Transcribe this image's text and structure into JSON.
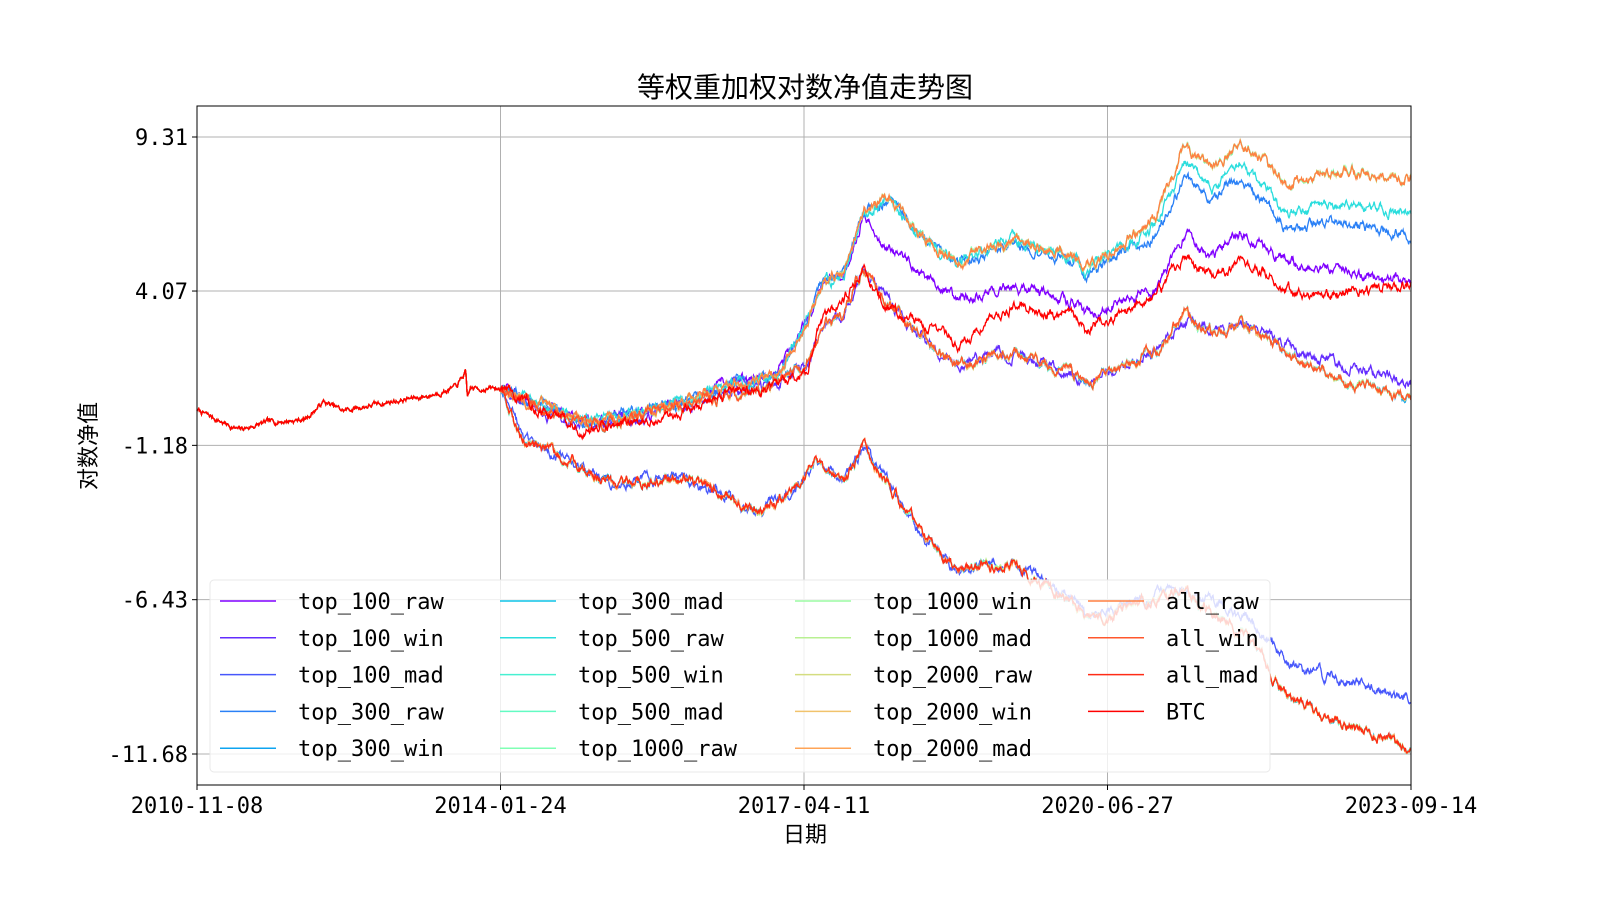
{
  "chart_data": {
    "type": "line",
    "title": "等权重加权对数净值走势图",
    "xlabel": "日期",
    "ylabel": "对数净值",
    "x_ticks": [
      {
        "label": "2010-11-08",
        "year": 2010.86
      },
      {
        "label": "2014-01-24",
        "year": 2014.07
      },
      {
        "label": "2017-04-11",
        "year": 2017.28
      },
      {
        "label": "2020-06-27",
        "year": 2020.49
      },
      {
        "label": "2023-09-14",
        "year": 2023.7
      }
    ],
    "y_ticks": [
      9.31,
      4.07,
      -1.18,
      -6.43,
      -11.68
    ],
    "y_tick_labels": [
      "9.31",
      "4.07",
      "-1.18",
      "-6.43",
      "-11.68"
    ],
    "xlim": [
      2010.86,
      2023.7
    ],
    "ylim": [
      -12.75,
      10.35
    ],
    "grid": true,
    "legend_placement": "lower-left",
    "legend_columns": 4,
    "shared_prefix": [
      [
        2010.86,
        0.02
      ],
      [
        2011.3,
        -0.66
      ],
      [
        2011.6,
        -0.4
      ],
      [
        2012.0,
        -0.3
      ],
      [
        2012.2,
        0.3
      ],
      [
        2012.4,
        0.0
      ],
      [
        2012.9,
        0.3
      ],
      [
        2013.3,
        0.5
      ],
      [
        2013.6,
        0.8
      ],
      [
        2013.7,
        1.3
      ],
      [
        2013.72,
        0.4
      ],
      [
        2013.75,
        0.75
      ],
      [
        2014.07,
        0.75
      ]
    ],
    "curves": {
      "raw_top": [
        [
          2014.07,
          0.75
        ],
        [
          2014.5,
          0.2
        ],
        [
          2015.0,
          -0.4
        ],
        [
          2015.5,
          -0.1
        ],
        [
          2016.0,
          0.3
        ],
        [
          2016.5,
          0.9
        ],
        [
          2017.0,
          1.2
        ],
        [
          2017.3,
          3.0
        ],
        [
          2017.5,
          4.4
        ],
        [
          2017.7,
          4.6
        ],
        [
          2017.9,
          6.8
        ],
        [
          2018.2,
          7.2
        ],
        [
          2018.5,
          6.0
        ],
        [
          2018.9,
          5.1
        ],
        [
          2019.5,
          5.8
        ],
        [
          2020.2,
          5.1
        ],
        [
          2020.25,
          4.8
        ],
        [
          2021.0,
          6.6
        ],
        [
          2021.3,
          9.0
        ],
        [
          2021.6,
          8.2
        ],
        [
          2021.9,
          9.3
        ],
        [
          2022.4,
          7.7
        ],
        [
          2022.6,
          7.9
        ],
        [
          2023.0,
          8.2
        ],
        [
          2023.7,
          7.85
        ]
      ],
      "raw_500": [
        [
          2014.07,
          0.75
        ],
        [
          2014.5,
          0.2
        ],
        [
          2015.0,
          -0.4
        ],
        [
          2015.5,
          -0.1
        ],
        [
          2016.0,
          0.3
        ],
        [
          2016.5,
          0.9
        ],
        [
          2017.0,
          1.2
        ],
        [
          2017.3,
          3.0
        ],
        [
          2017.5,
          4.4
        ],
        [
          2017.7,
          4.6
        ],
        [
          2017.9,
          6.8
        ],
        [
          2018.2,
          7.2
        ],
        [
          2018.5,
          6.0
        ],
        [
          2018.9,
          5.1
        ],
        [
          2019.5,
          5.8
        ],
        [
          2020.2,
          5.1
        ],
        [
          2020.25,
          4.8
        ],
        [
          2021.0,
          6.3
        ],
        [
          2021.3,
          8.3
        ],
        [
          2021.6,
          7.6
        ],
        [
          2021.9,
          8.4
        ],
        [
          2022.4,
          6.7
        ],
        [
          2022.6,
          6.9
        ],
        [
          2023.0,
          7.0
        ],
        [
          2023.7,
          6.7
        ]
      ],
      "raw_300": [
        [
          2014.07,
          0.75
        ],
        [
          2014.5,
          0.2
        ],
        [
          2015.0,
          -0.4
        ],
        [
          2015.5,
          -0.1
        ],
        [
          2016.0,
          0.3
        ],
        [
          2016.5,
          0.9
        ],
        [
          2017.0,
          1.2
        ],
        [
          2017.3,
          3.0
        ],
        [
          2017.5,
          4.4
        ],
        [
          2017.7,
          4.6
        ],
        [
          2017.9,
          6.8
        ],
        [
          2018.2,
          7.2
        ],
        [
          2018.5,
          6.0
        ],
        [
          2018.9,
          5.0
        ],
        [
          2019.5,
          5.7
        ],
        [
          2020.2,
          5.0
        ],
        [
          2020.25,
          4.6
        ],
        [
          2021.0,
          6.0
        ],
        [
          2021.3,
          7.8
        ],
        [
          2021.6,
          7.2
        ],
        [
          2021.9,
          7.9
        ],
        [
          2022.4,
          6.2
        ],
        [
          2022.6,
          6.3
        ],
        [
          2023.0,
          6.4
        ],
        [
          2023.7,
          6.0
        ]
      ],
      "raw_100": [
        [
          2014.07,
          0.75
        ],
        [
          2014.5,
          0.2
        ],
        [
          2015.0,
          -0.4
        ],
        [
          2015.5,
          -0.1
        ],
        [
          2016.0,
          0.3
        ],
        [
          2016.5,
          0.9
        ],
        [
          2017.0,
          1.2
        ],
        [
          2017.3,
          3.0
        ],
        [
          2017.5,
          4.4
        ],
        [
          2017.7,
          4.6
        ],
        [
          2017.9,
          6.5
        ],
        [
          2018.2,
          5.5
        ],
        [
          2018.9,
          3.8
        ],
        [
          2019.5,
          4.3
        ],
        [
          2020.2,
          3.6
        ],
        [
          2020.25,
          3.3
        ],
        [
          2021.0,
          4.1
        ],
        [
          2021.3,
          6.0
        ],
        [
          2021.6,
          5.3
        ],
        [
          2021.9,
          6.0
        ],
        [
          2022.6,
          4.8
        ],
        [
          2023.0,
          4.7
        ],
        [
          2023.7,
          4.4
        ]
      ],
      "btc": [
        [
          2014.07,
          0.75
        ],
        [
          2014.5,
          0.0
        ],
        [
          2015.0,
          -0.66
        ],
        [
          2015.5,
          -0.4
        ],
        [
          2016.0,
          0.0
        ],
        [
          2016.5,
          0.6
        ],
        [
          2017.0,
          0.75
        ],
        [
          2017.3,
          1.3
        ],
        [
          2017.5,
          3.3
        ],
        [
          2017.7,
          3.8
        ],
        [
          2017.9,
          4.8
        ],
        [
          2018.1,
          3.6
        ],
        [
          2018.5,
          3.0
        ],
        [
          2018.9,
          2.2
        ],
        [
          2019.5,
          3.6
        ],
        [
          2020.2,
          3.1
        ],
        [
          2020.25,
          2.7
        ],
        [
          2021.0,
          3.9
        ],
        [
          2021.3,
          5.1
        ],
        [
          2021.6,
          4.6
        ],
        [
          2021.9,
          5.1
        ],
        [
          2022.6,
          3.9
        ],
        [
          2023.0,
          4.0
        ],
        [
          2023.7,
          4.3
        ]
      ],
      "win": [
        [
          2014.07,
          0.75
        ],
        [
          2014.5,
          0.0
        ],
        [
          2015.0,
          -0.5
        ],
        [
          2015.5,
          -0.2
        ],
        [
          2016.0,
          0.2
        ],
        [
          2016.5,
          0.6
        ],
        [
          2017.0,
          1.0
        ],
        [
          2017.3,
          1.5
        ],
        [
          2017.5,
          3.0
        ],
        [
          2017.7,
          3.2
        ],
        [
          2017.9,
          4.7
        ],
        [
          2018.2,
          3.6
        ],
        [
          2018.5,
          2.6
        ],
        [
          2018.9,
          1.55
        ],
        [
          2019.5,
          2.0
        ],
        [
          2020.2,
          1.2
        ],
        [
          2020.25,
          0.9
        ],
        [
          2021.0,
          2.0
        ],
        [
          2021.3,
          3.2
        ],
        [
          2021.6,
          2.6
        ],
        [
          2021.9,
          3.0
        ],
        [
          2022.6,
          1.6
        ],
        [
          2023.0,
          1.0
        ],
        [
          2023.7,
          0.36
        ]
      ],
      "win_100": [
        [
          2014.07,
          0.75
        ],
        [
          2014.5,
          0.0
        ],
        [
          2015.0,
          -0.5
        ],
        [
          2015.5,
          -0.2
        ],
        [
          2016.0,
          0.2
        ],
        [
          2016.5,
          0.6
        ],
        [
          2017.0,
          1.0
        ],
        [
          2017.3,
          1.5
        ],
        [
          2017.5,
          3.0
        ],
        [
          2017.7,
          3.2
        ],
        [
          2017.9,
          4.7
        ],
        [
          2018.2,
          3.6
        ],
        [
          2018.5,
          2.6
        ],
        [
          2018.9,
          1.55
        ],
        [
          2019.5,
          2.0
        ],
        [
          2020.2,
          1.2
        ],
        [
          2020.25,
          0.9
        ],
        [
          2021.0,
          2.0
        ],
        [
          2021.3,
          3.2
        ],
        [
          2021.6,
          2.6
        ],
        [
          2021.9,
          3.0
        ],
        [
          2022.6,
          2.0
        ],
        [
          2023.0,
          1.5
        ],
        [
          2023.7,
          0.95
        ]
      ],
      "mad": [
        [
          2014.07,
          0.75
        ],
        [
          2014.3,
          -1.0
        ],
        [
          2014.8,
          -1.7
        ],
        [
          2015.3,
          -2.5
        ],
        [
          2016.0,
          -2.3
        ],
        [
          2016.8,
          -3.4
        ],
        [
          2017.2,
          -2.7
        ],
        [
          2017.4,
          -1.7
        ],
        [
          2017.7,
          -2.5
        ],
        [
          2017.9,
          -1.2
        ],
        [
          2018.5,
          -4.1
        ],
        [
          2018.9,
          -5.4
        ],
        [
          2019.5,
          -5.2
        ],
        [
          2020.2,
          -6.8
        ],
        [
          2020.25,
          -7.2
        ],
        [
          2021.0,
          -6.4
        ],
        [
          2021.3,
          -6.1
        ],
        [
          2022.0,
          -7.8
        ],
        [
          2022.4,
          -9.8
        ],
        [
          2023.0,
          -10.6
        ],
        [
          2023.7,
          -11.6
        ]
      ],
      "mad_100": [
        [
          2014.07,
          0.75
        ],
        [
          2014.3,
          -1.0
        ],
        [
          2014.8,
          -1.7
        ],
        [
          2015.3,
          -2.5
        ],
        [
          2016.0,
          -2.3
        ],
        [
          2016.8,
          -3.4
        ],
        [
          2017.2,
          -2.7
        ],
        [
          2017.4,
          -1.7
        ],
        [
          2017.7,
          -2.5
        ],
        [
          2017.9,
          -1.2
        ],
        [
          2018.5,
          -4.1
        ],
        [
          2018.9,
          -5.4
        ],
        [
          2019.5,
          -5.2
        ],
        [
          2020.2,
          -6.6
        ],
        [
          2020.25,
          -7.0
        ],
        [
          2021.0,
          -6.3
        ],
        [
          2021.3,
          -6.0
        ],
        [
          2022.0,
          -7.1
        ],
        [
          2022.4,
          -8.6
        ],
        [
          2023.0,
          -9.2
        ],
        [
          2023.7,
          -9.8
        ]
      ]
    },
    "series": [
      {
        "name": "top_100_raw",
        "color": "#8000ff",
        "curve": "raw_100"
      },
      {
        "name": "top_100_win",
        "color": "#632cfe",
        "curve": "win_100"
      },
      {
        "name": "top_100_mad",
        "color": "#4757fb",
        "curve": "mad_100"
      },
      {
        "name": "top_300_raw",
        "color": "#2a80f6",
        "curve": "raw_300"
      },
      {
        "name": "top_300_win",
        "color": "#0ea4f0",
        "curve": "win"
      },
      {
        "name": "top_300_mad",
        "color": "#0ec3e7",
        "curve": "mad"
      },
      {
        "name": "top_500_raw",
        "color": "#2adddd",
        "curve": "raw_500"
      },
      {
        "name": "top_500_win",
        "color": "#47f0d1",
        "curve": "win"
      },
      {
        "name": "top_500_mad",
        "color": "#63fbc3",
        "curve": "mad"
      },
      {
        "name": "top_1000_raw",
        "color": "#80ffb4",
        "curve": "raw_top"
      },
      {
        "name": "top_1000_win",
        "color": "#9cfba4",
        "curve": "win"
      },
      {
        "name": "top_1000_mad",
        "color": "#b8f092",
        "curve": "mad"
      },
      {
        "name": "top_2000_raw",
        "color": "#d4dd80",
        "curve": "raw_top"
      },
      {
        "name": "top_2000_win",
        "color": "#f1c36c",
        "curve": "win"
      },
      {
        "name": "top_2000_mad",
        "color": "#ffa457",
        "curve": "mad"
      },
      {
        "name": "all_raw",
        "color": "#ff8042",
        "curve": "raw_top"
      },
      {
        "name": "all_win",
        "color": "#ff572c",
        "curve": "win"
      },
      {
        "name": "all_mad",
        "color": "#ff2c16",
        "curve": "mad"
      },
      {
        "name": "BTC",
        "color": "#ff0000",
        "curve": "btc"
      }
    ]
  }
}
